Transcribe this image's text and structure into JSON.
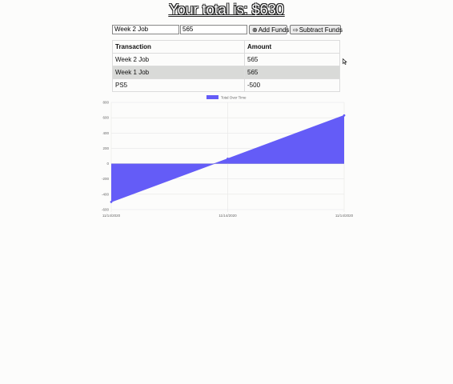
{
  "header": {
    "title": "Your total is: $630"
  },
  "form": {
    "name_value": "Week 2 Job",
    "amount_value": "565",
    "add_label": "Add Funds",
    "subtract_label": "Subtract Funds"
  },
  "table": {
    "headers": [
      "Transaction",
      "Amount"
    ],
    "rows": [
      {
        "name": "Week 2 Job",
        "amount": "565"
      },
      {
        "name": "Week 1 Job",
        "amount": "565"
      },
      {
        "name": "PS5",
        "amount": "-500"
      }
    ]
  },
  "chart_data": {
    "type": "area",
    "title": "",
    "legend": "Total Over Time",
    "legend_position": "top",
    "x": [
      "11/14/2020",
      "11/14/2020",
      "11/14/2020"
    ],
    "series": [
      {
        "name": "Total Over Time",
        "values": [
          -500,
          65,
          630
        ]
      }
    ],
    "ylim": [
      -600,
      800
    ],
    "yticks": [
      800,
      600,
      400,
      200,
      0,
      -200,
      -400,
      -600
    ],
    "fill_color": "#645cf7",
    "grid": true
  }
}
